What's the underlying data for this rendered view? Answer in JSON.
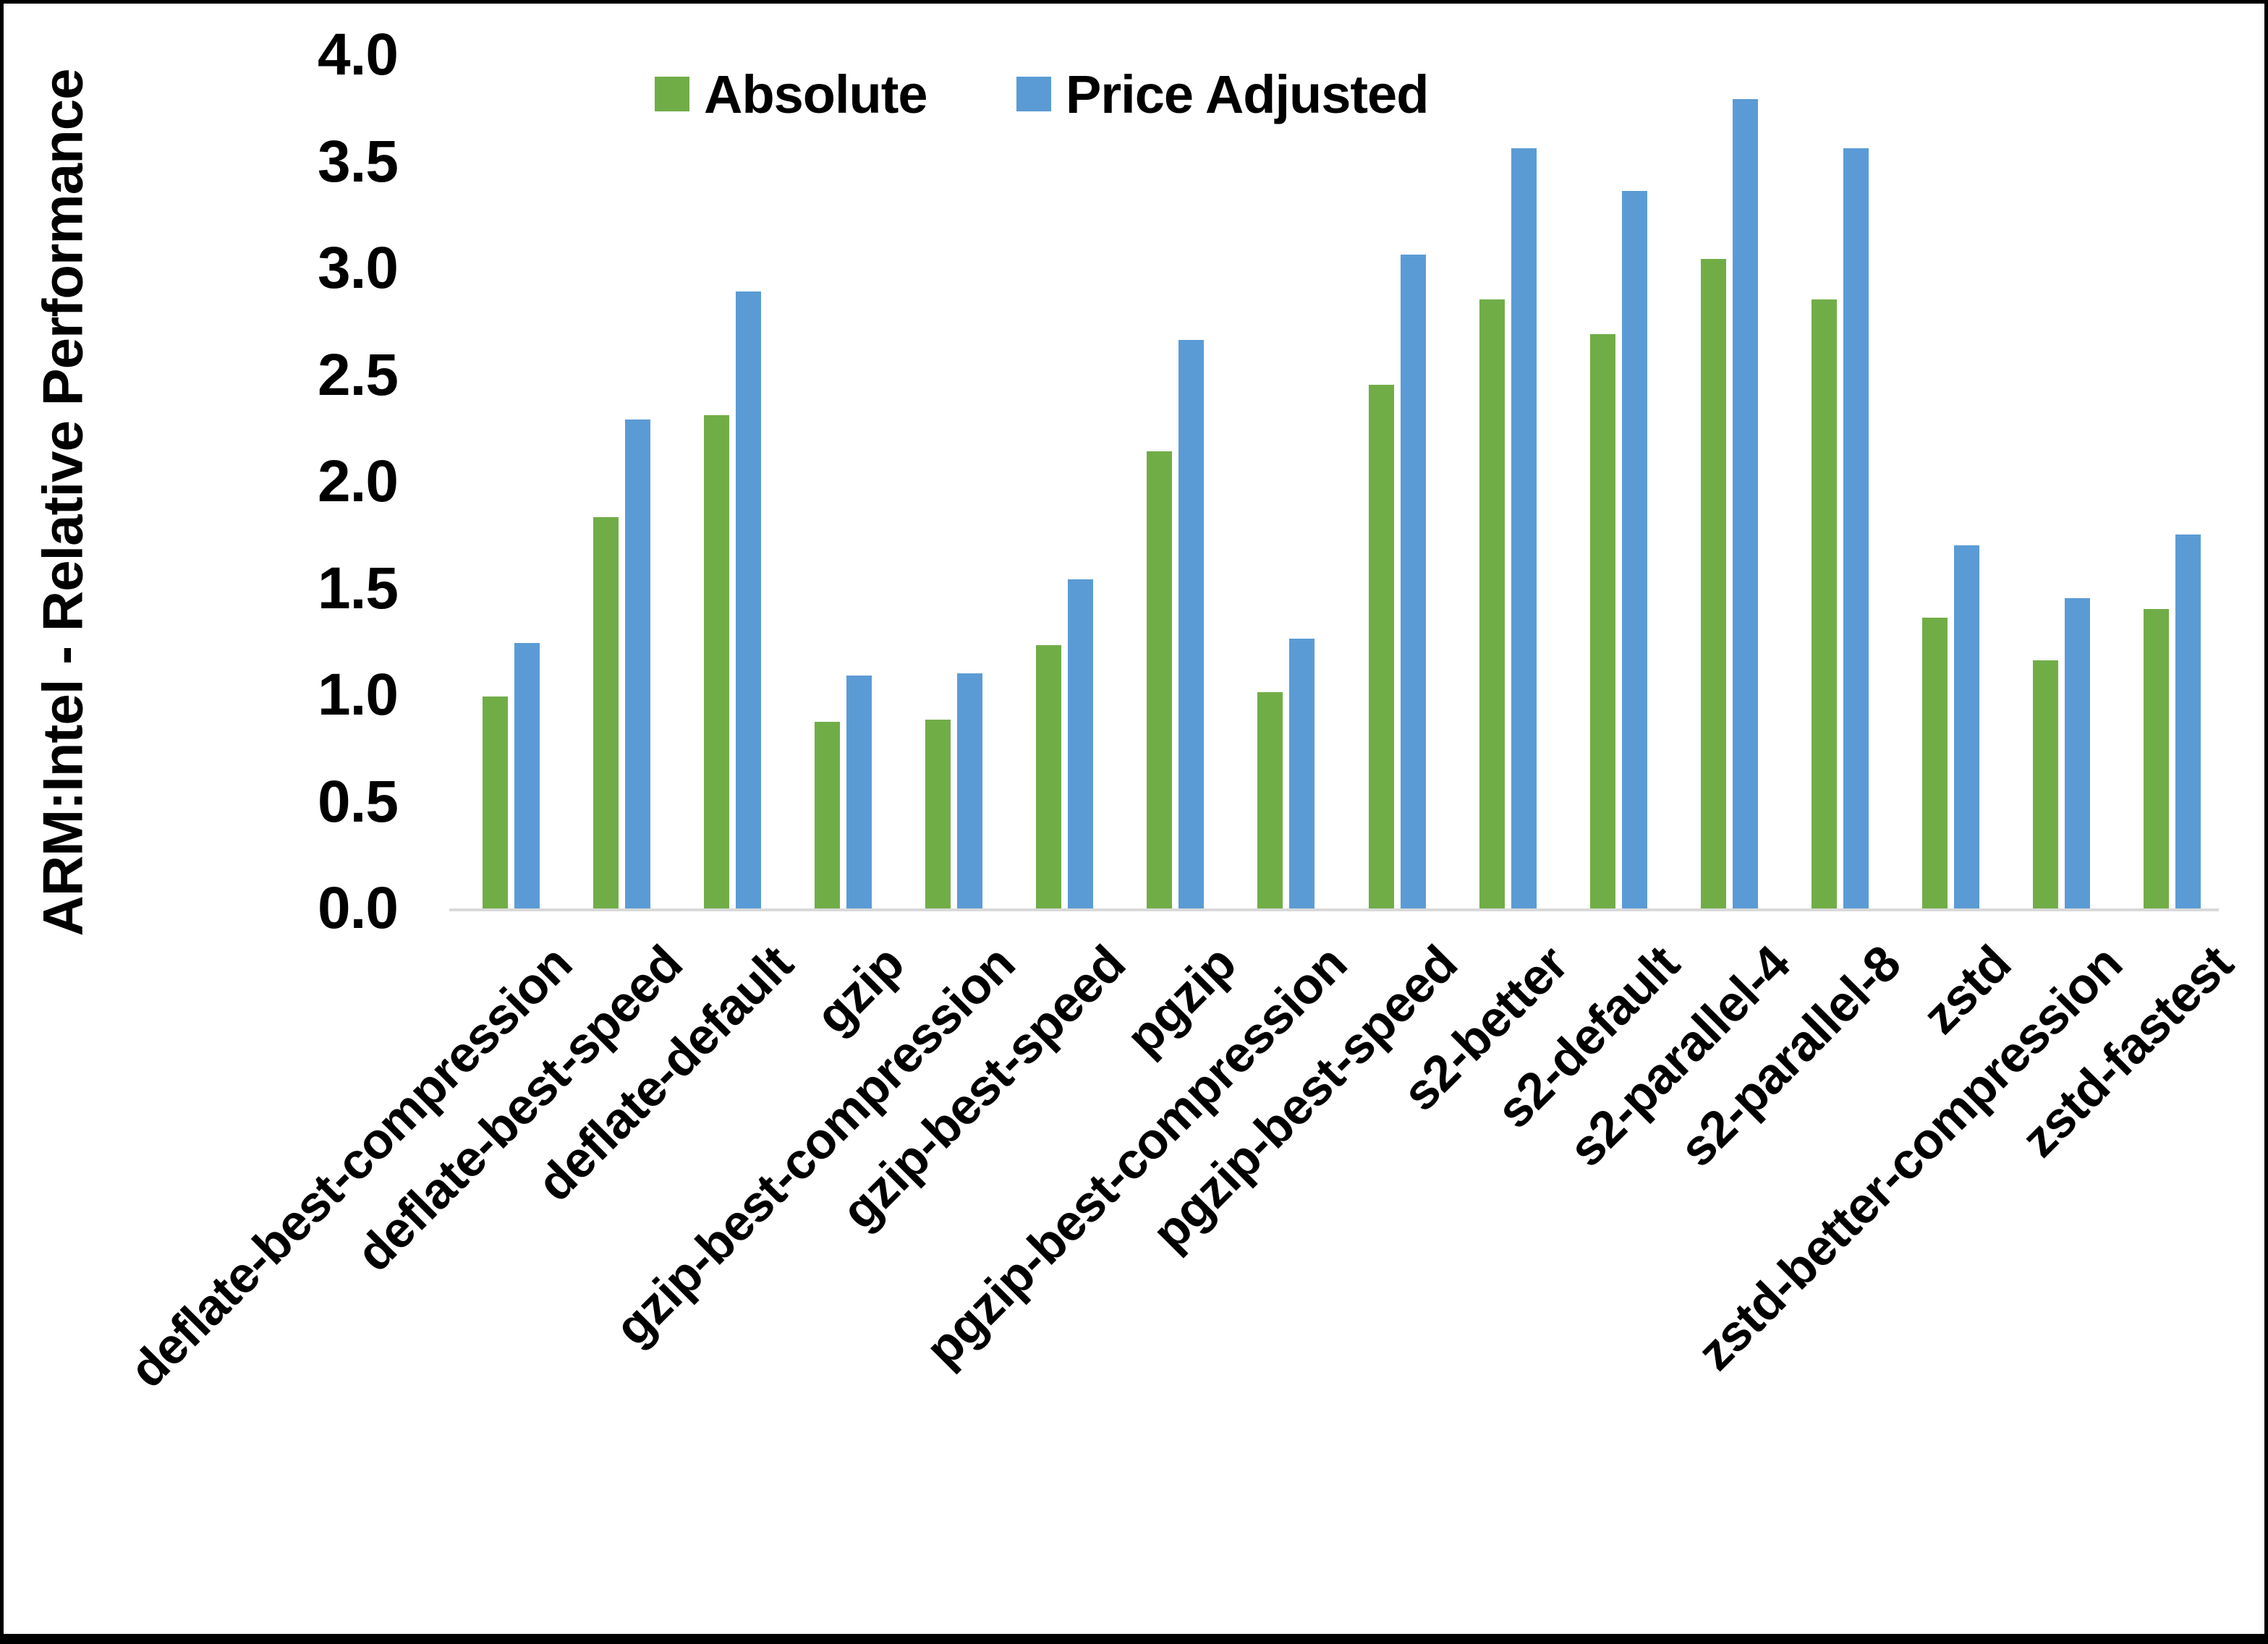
{
  "chart_data": {
    "type": "bar",
    "title": "",
    "xlabel": "",
    "ylabel": "ARM:Intel - Relative Performance",
    "ylim": [
      0.0,
      4.0
    ],
    "ytick_step": 0.5,
    "yticks": [
      "0.0",
      "0.5",
      "1.0",
      "1.5",
      "2.0",
      "2.5",
      "3.0",
      "3.5",
      "4.0"
    ],
    "grid": "off",
    "legend_position": "top-center",
    "categories": [
      "deflate-best-compression",
      "deflate-best-speed",
      "deflate-default",
      "gzip",
      "gzip-best-compression",
      "gzip-best-speed",
      "pgzip",
      "pgzip-best-compression",
      "pgzip-best-speed",
      "s2-better",
      "s2-default",
      "s2-parallel-4",
      "s2-parallel-8",
      "zstd",
      "zstd-better-compression",
      "zstd-fastest"
    ],
    "series": [
      {
        "name": "Absolute",
        "color": "#70AD47",
        "values": [
          1.0,
          1.84,
          2.32,
          0.88,
          0.89,
          1.24,
          2.15,
          1.02,
          2.46,
          2.86,
          2.7,
          3.05,
          2.86,
          1.37,
          1.17,
          1.41
        ]
      },
      {
        "name": "Price Adjusted",
        "color": "#5B9BD5",
        "values": [
          1.25,
          2.3,
          2.9,
          1.1,
          1.11,
          1.55,
          2.67,
          1.27,
          3.07,
          3.57,
          3.37,
          3.8,
          3.57,
          1.71,
          1.46,
          1.76
        ]
      }
    ]
  },
  "colors": {
    "axis_line": "#D9D9D9",
    "text": "#000000",
    "background": "#FFFFFF",
    "frame_border": "#000000"
  }
}
